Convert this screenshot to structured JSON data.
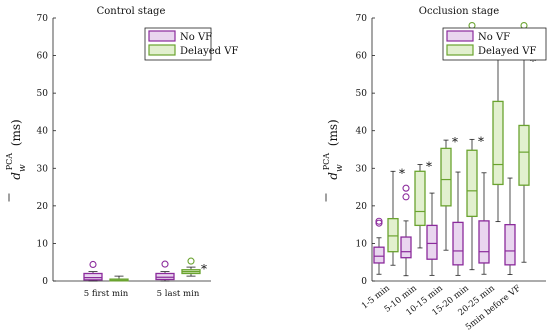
{
  "colors": {
    "no_vf_edge": "#8b2b9c",
    "no_vf_fill": "#e9d6ef",
    "delayed_edge": "#6aa32f",
    "delayed_fill": "#e2f0cf"
  },
  "chart_data": [
    {
      "type": "box",
      "title": "Control stage",
      "ylabel_main": "d",
      "ylabel_sup": "PCA",
      "ylabel_sub": "w",
      "ylabel_unit": "(ms)",
      "ylim": [
        0,
        70
      ],
      "yticks": [
        "0",
        "10",
        "20",
        "30",
        "40",
        "50",
        "60",
        "70"
      ],
      "categories": [
        "5 first min",
        "5 last min"
      ],
      "legend": [
        "No VF",
        "Delayed VF"
      ],
      "legend_position": "top-right",
      "series": [
        {
          "name": "No VF",
          "boxes": [
            {
              "wlo": 0,
              "q1": 0.3,
              "med": 0.9,
              "q3": 2.0,
              "whi": 2.5,
              "outliers": [
                4.4
              ],
              "star": false
            },
            {
              "wlo": 0,
              "q1": 0.4,
              "med": 1.0,
              "q3": 2.0,
              "whi": 2.5,
              "outliers": [
                4.5
              ],
              "star": false
            }
          ]
        },
        {
          "name": "Delayed VF",
          "boxes": [
            {
              "wlo": 0,
              "q1": 0.05,
              "med": 0.2,
              "q3": 0.5,
              "whi": 1.3,
              "outliers": [],
              "star": false
            },
            {
              "wlo": 1.3,
              "q1": 2.0,
              "med": 2.5,
              "q3": 3.0,
              "whi": 3.7,
              "outliers": [
                5.3
              ],
              "star": true
            }
          ]
        }
      ]
    },
    {
      "type": "box",
      "title": "Occlusion stage",
      "ylabel_main": "d",
      "ylabel_sup": "PCA",
      "ylabel_sub": "w",
      "ylabel_unit": "(ms)",
      "ylim": [
        0,
        70
      ],
      "yticks": [
        "0",
        "10",
        "20",
        "30",
        "40",
        "50",
        "60",
        "70"
      ],
      "categories": [
        "1-5 min",
        "5-10 min",
        "10-15 min",
        "15-20 min",
        "20-25 min",
        "5min before VF"
      ],
      "legend": [
        "No VF",
        "Delayed VF"
      ],
      "legend_position": "top-right",
      "series": [
        {
          "name": "No VF",
          "boxes": [
            {
              "wlo": 1.8,
              "q1": 4.8,
              "med": 6.6,
              "q3": 9.0,
              "whi": 11.5,
              "outliers": [
                15.4,
                15.9
              ],
              "star": false
            },
            {
              "wlo": 1.4,
              "q1": 6.2,
              "med": 7.8,
              "q3": 11.7,
              "whi": 16.0,
              "outliers": [
                22.4,
                24.7
              ],
              "star": false
            },
            {
              "wlo": 1.5,
              "q1": 5.8,
              "med": 10.0,
              "q3": 14.8,
              "whi": 23.4,
              "outliers": [],
              "star": false
            },
            {
              "wlo": 1.5,
              "q1": 4.3,
              "med": 8.0,
              "q3": 15.6,
              "whi": 29.0,
              "outliers": [],
              "star": false
            },
            {
              "wlo": 1.8,
              "q1": 4.8,
              "med": 7.8,
              "q3": 16.0,
              "whi": 28.8,
              "outliers": [],
              "star": false
            },
            {
              "wlo": 1.7,
              "q1": 4.3,
              "med": 8.0,
              "q3": 15.0,
              "whi": 27.4,
              "outliers": [],
              "star": false
            }
          ]
        },
        {
          "name": "Delayed VF",
          "boxes": [
            {
              "wlo": 4.2,
              "q1": 7.8,
              "med": 12.0,
              "q3": 16.6,
              "whi": 29.2,
              "outliers": [],
              "star": true
            },
            {
              "wlo": 8.8,
              "q1": 14.8,
              "med": 18.5,
              "q3": 29.2,
              "whi": 31.0,
              "outliers": [],
              "star": true
            },
            {
              "wlo": 8.2,
              "q1": 20.0,
              "med": 27.0,
              "q3": 35.3,
              "whi": 37.5,
              "outliers": [],
              "star": true
            },
            {
              "wlo": 3.0,
              "q1": 17.2,
              "med": 24.0,
              "q3": 34.8,
              "whi": 37.7,
              "outliers": [
                68.0
              ],
              "star": true
            },
            {
              "wlo": 15.8,
              "q1": 25.7,
              "med": 31.0,
              "q3": 47.8,
              "whi": 59.0,
              "outliers": [],
              "star": false
            },
            {
              "wlo": 5.0,
              "q1": 25.5,
              "med": 34.3,
              "q3": 41.4,
              "whi": 59.0,
              "outliers": [
                68.0
              ],
              "star": true
            }
          ]
        }
      ]
    }
  ]
}
